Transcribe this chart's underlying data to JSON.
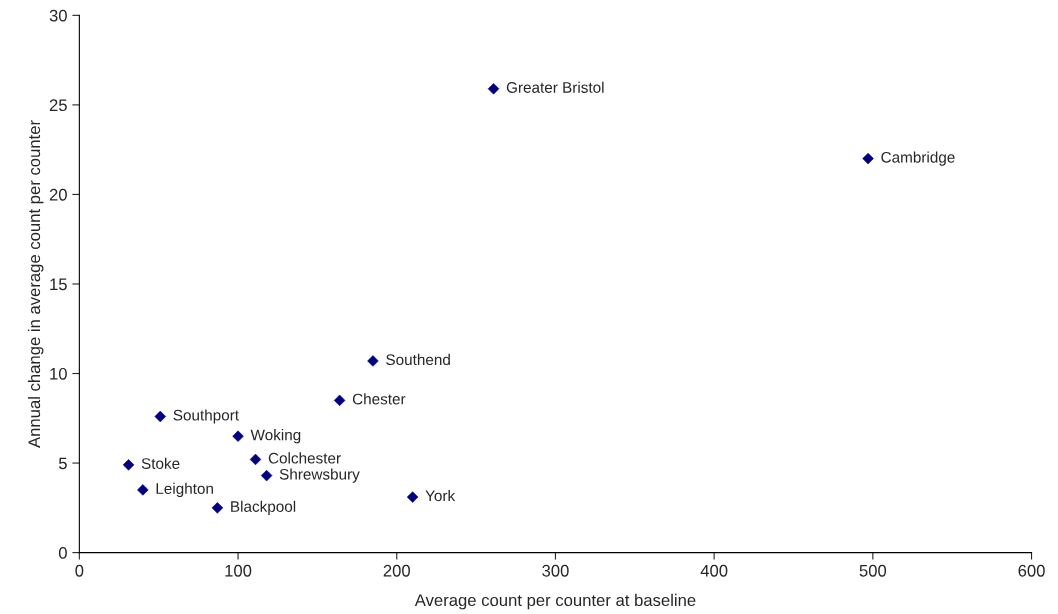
{
  "chart_data": {
    "type": "scatter",
    "xlabel": "Average count per counter at baseline",
    "ylabel": "Annual change in average count per counter",
    "x": [
      261,
      497,
      185,
      164,
      51,
      100,
      111,
      31,
      118,
      40,
      210,
      87
    ],
    "series": [
      {
        "color": "#000080",
        "values": [
          25.9,
          22.0,
          10.7,
          8.5,
          7.6,
          6.5,
          5.2,
          4.9,
          4.3,
          3.5,
          3.1,
          2.5
        ]
      }
    ],
    "annotations": [
      {
        "text": "Greater Bristol",
        "x": 261,
        "y": 25.9
      },
      {
        "text": "Cambridge",
        "x": 497,
        "y": 22.0
      },
      {
        "text": "Southend",
        "x": 185,
        "y": 10.7
      },
      {
        "text": "Chester",
        "x": 164,
        "y": 8.5
      },
      {
        "text": "Southport",
        "x": 51,
        "y": 7.6
      },
      {
        "text": "Woking",
        "x": 100,
        "y": 6.5
      },
      {
        "text": "Colchester",
        "x": 111,
        "y": 5.2
      },
      {
        "text": "Stoke",
        "x": 31,
        "y": 4.9
      },
      {
        "text": "Shrewsbury",
        "x": 118,
        "y": 4.3
      },
      {
        "text": "Leighton",
        "x": 40,
        "y": 3.5
      },
      {
        "text": "York",
        "x": 210,
        "y": 3.1
      },
      {
        "text": "Blackpool",
        "x": 87,
        "y": 2.5
      }
    ],
    "xlim": [
      0,
      600
    ],
    "xticks": [
      0,
      100,
      200,
      300,
      400,
      500,
      600
    ],
    "ylim": [
      0,
      30
    ],
    "yticks": [
      0,
      5,
      10,
      15,
      20,
      25,
      30
    ],
    "marker": "diamond",
    "grid": false,
    "legend": false
  }
}
